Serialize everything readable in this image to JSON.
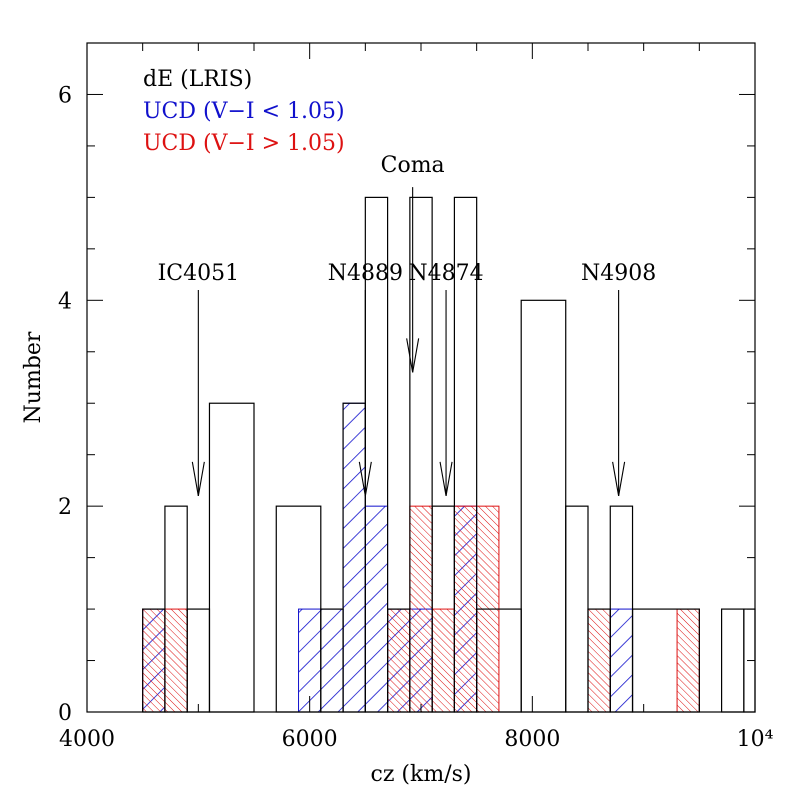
{
  "chart_data": {
    "type": "histogram",
    "title": "",
    "xlabel": "cz (km/s)",
    "ylabel": "Number",
    "xlim": [
      4000,
      10000
    ],
    "ylim": [
      0,
      6.5
    ],
    "x_ticks": [
      {
        "value": 4000,
        "label": "4000"
      },
      {
        "value": 6000,
        "label": "6000"
      },
      {
        "value": 8000,
        "label": "8000"
      },
      {
        "value": 10000,
        "label": "10⁴"
      }
    ],
    "y_ticks": [
      {
        "value": 0,
        "label": "0"
      },
      {
        "value": 2,
        "label": "2"
      },
      {
        "value": 4,
        "label": "4"
      },
      {
        "value": 6,
        "label": "6"
      }
    ],
    "legend": [
      {
        "label": "dE (LRIS)",
        "color": "#000000"
      },
      {
        "label": "UCD (V−I < 1.05)",
        "color": "#1010cc"
      },
      {
        "label": "UCD (V−I > 1.05)",
        "color": "#dd1111"
      }
    ],
    "series": [
      {
        "name": "dE (LRIS)",
        "style": "outline",
        "color": "#000000",
        "bins": [
          {
            "x0": 4500,
            "x1": 4700,
            "count": 1
          },
          {
            "x0": 4700,
            "x1": 4900,
            "count": 2
          },
          {
            "x0": 4900,
            "x1": 5100,
            "count": 1
          },
          {
            "x0": 5100,
            "x1": 5500,
            "count": 3
          },
          {
            "x0": 5700,
            "x1": 6100,
            "count": 2
          },
          {
            "x0": 6100,
            "x1": 6300,
            "count": 1
          },
          {
            "x0": 6300,
            "x1": 6500,
            "count": 3
          },
          {
            "x0": 6500,
            "x1": 6700,
            "count": 5
          },
          {
            "x0": 6700,
            "x1": 6900,
            "count": 1
          },
          {
            "x0": 6900,
            "x1": 7100,
            "count": 5
          },
          {
            "x0": 7100,
            "x1": 7300,
            "count": 2
          },
          {
            "x0": 7300,
            "x1": 7500,
            "count": 5
          },
          {
            "x0": 7500,
            "x1": 7900,
            "count": 1
          },
          {
            "x0": 7900,
            "x1": 8300,
            "count": 4
          },
          {
            "x0": 8300,
            "x1": 8500,
            "count": 2
          },
          {
            "x0": 8500,
            "x1": 8700,
            "count": 1
          },
          {
            "x0": 8700,
            "x1": 8900,
            "count": 2
          },
          {
            "x0": 8900,
            "x1": 9500,
            "count": 1
          },
          {
            "x0": 9700,
            "x1": 9900,
            "count": 1
          },
          {
            "x0": 9900,
            "x1": 10000,
            "count": 1
          }
        ]
      },
      {
        "name": "UCD (V−I < 1.05)",
        "style": "hatch",
        "color": "#1010cc",
        "bins": [
          {
            "x0": 4500,
            "x1": 4700,
            "count": 1
          },
          {
            "x0": 5900,
            "x1": 6300,
            "count": 1
          },
          {
            "x0": 6300,
            "x1": 6500,
            "count": 3
          },
          {
            "x0": 6500,
            "x1": 6700,
            "count": 2
          },
          {
            "x0": 6700,
            "x1": 7100,
            "count": 1
          },
          {
            "x0": 7300,
            "x1": 7500,
            "count": 2
          },
          {
            "x0": 8700,
            "x1": 8900,
            "count": 1
          }
        ]
      },
      {
        "name": "UCD (V−I > 1.05)",
        "style": "hatch",
        "color": "#dd1111",
        "bins": [
          {
            "x0": 4500,
            "x1": 4700,
            "count": 1
          },
          {
            "x0": 4700,
            "x1": 4900,
            "count": 1
          },
          {
            "x0": 6700,
            "x1": 6900,
            "count": 1
          },
          {
            "x0": 6900,
            "x1": 7100,
            "count": 2
          },
          {
            "x0": 7100,
            "x1": 7300,
            "count": 1
          },
          {
            "x0": 7300,
            "x1": 7700,
            "count": 2
          },
          {
            "x0": 8500,
            "x1": 8700,
            "count": 1
          },
          {
            "x0": 9300,
            "x1": 9500,
            "count": 1
          }
        ]
      }
    ],
    "annotations": [
      {
        "label": "IC4051",
        "x": 5000,
        "y_top": 4.1,
        "y_tip": 2.1
      },
      {
        "label": "N4889",
        "x": 6500,
        "y_top": 4.1,
        "y_tip": 2.1
      },
      {
        "label": "Coma",
        "x": 6925,
        "y_top": 5.1,
        "y_tip": 3.3
      },
      {
        "label": "N4874",
        "x": 7225,
        "y_top": 4.1,
        "y_tip": 2.1
      },
      {
        "label": "N4908",
        "x": 8775,
        "y_top": 4.1,
        "y_tip": 2.1
      }
    ]
  }
}
